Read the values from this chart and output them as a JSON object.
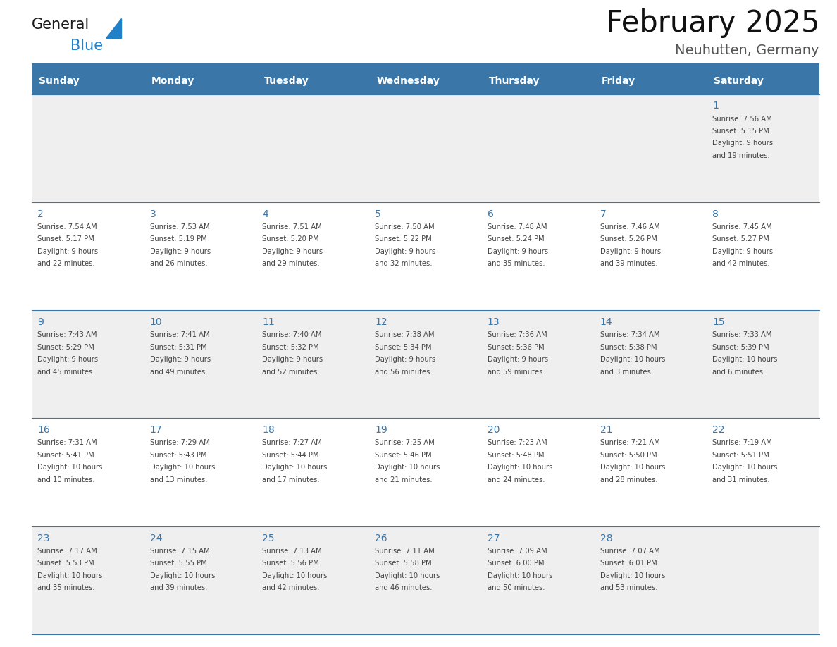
{
  "title": "February 2025",
  "subtitle": "Neuhutten, Germany",
  "header_bg": "#3a76a8",
  "header_text_color": "#ffffff",
  "days_of_week": [
    "Sunday",
    "Monday",
    "Tuesday",
    "Wednesday",
    "Thursday",
    "Friday",
    "Saturday"
  ],
  "cell_bg_odd": "#efefef",
  "cell_bg_even": "#ffffff",
  "separator_color": "#3a76a8",
  "day_num_color": "#3a76a8",
  "info_color": "#444444",
  "title_color": "#111111",
  "subtitle_color": "#555555",
  "calendar": [
    [
      null,
      null,
      null,
      null,
      null,
      null,
      {
        "day": 1,
        "sunrise": "7:56 AM",
        "sunset": "5:15 PM",
        "daylight": "9 hours and 19 minutes"
      }
    ],
    [
      {
        "day": 2,
        "sunrise": "7:54 AM",
        "sunset": "5:17 PM",
        "daylight": "9 hours and 22 minutes"
      },
      {
        "day": 3,
        "sunrise": "7:53 AM",
        "sunset": "5:19 PM",
        "daylight": "9 hours and 26 minutes"
      },
      {
        "day": 4,
        "sunrise": "7:51 AM",
        "sunset": "5:20 PM",
        "daylight": "9 hours and 29 minutes"
      },
      {
        "day": 5,
        "sunrise": "7:50 AM",
        "sunset": "5:22 PM",
        "daylight": "9 hours and 32 minutes"
      },
      {
        "day": 6,
        "sunrise": "7:48 AM",
        "sunset": "5:24 PM",
        "daylight": "9 hours and 35 minutes"
      },
      {
        "day": 7,
        "sunrise": "7:46 AM",
        "sunset": "5:26 PM",
        "daylight": "9 hours and 39 minutes"
      },
      {
        "day": 8,
        "sunrise": "7:45 AM",
        "sunset": "5:27 PM",
        "daylight": "9 hours and 42 minutes"
      }
    ],
    [
      {
        "day": 9,
        "sunrise": "7:43 AM",
        "sunset": "5:29 PM",
        "daylight": "9 hours and 45 minutes"
      },
      {
        "day": 10,
        "sunrise": "7:41 AM",
        "sunset": "5:31 PM",
        "daylight": "9 hours and 49 minutes"
      },
      {
        "day": 11,
        "sunrise": "7:40 AM",
        "sunset": "5:32 PM",
        "daylight": "9 hours and 52 minutes"
      },
      {
        "day": 12,
        "sunrise": "7:38 AM",
        "sunset": "5:34 PM",
        "daylight": "9 hours and 56 minutes"
      },
      {
        "day": 13,
        "sunrise": "7:36 AM",
        "sunset": "5:36 PM",
        "daylight": "9 hours and 59 minutes"
      },
      {
        "day": 14,
        "sunrise": "7:34 AM",
        "sunset": "5:38 PM",
        "daylight": "10 hours and 3 minutes"
      },
      {
        "day": 15,
        "sunrise": "7:33 AM",
        "sunset": "5:39 PM",
        "daylight": "10 hours and 6 minutes"
      }
    ],
    [
      {
        "day": 16,
        "sunrise": "7:31 AM",
        "sunset": "5:41 PM",
        "daylight": "10 hours and 10 minutes"
      },
      {
        "day": 17,
        "sunrise": "7:29 AM",
        "sunset": "5:43 PM",
        "daylight": "10 hours and 13 minutes"
      },
      {
        "day": 18,
        "sunrise": "7:27 AM",
        "sunset": "5:44 PM",
        "daylight": "10 hours and 17 minutes"
      },
      {
        "day": 19,
        "sunrise": "7:25 AM",
        "sunset": "5:46 PM",
        "daylight": "10 hours and 21 minutes"
      },
      {
        "day": 20,
        "sunrise": "7:23 AM",
        "sunset": "5:48 PM",
        "daylight": "10 hours and 24 minutes"
      },
      {
        "day": 21,
        "sunrise": "7:21 AM",
        "sunset": "5:50 PM",
        "daylight": "10 hours and 28 minutes"
      },
      {
        "day": 22,
        "sunrise": "7:19 AM",
        "sunset": "5:51 PM",
        "daylight": "10 hours and 31 minutes"
      }
    ],
    [
      {
        "day": 23,
        "sunrise": "7:17 AM",
        "sunset": "5:53 PM",
        "daylight": "10 hours and 35 minutes"
      },
      {
        "day": 24,
        "sunrise": "7:15 AM",
        "sunset": "5:55 PM",
        "daylight": "10 hours and 39 minutes"
      },
      {
        "day": 25,
        "sunrise": "7:13 AM",
        "sunset": "5:56 PM",
        "daylight": "10 hours and 42 minutes"
      },
      {
        "day": 26,
        "sunrise": "7:11 AM",
        "sunset": "5:58 PM",
        "daylight": "10 hours and 46 minutes"
      },
      {
        "day": 27,
        "sunrise": "7:09 AM",
        "sunset": "6:00 PM",
        "daylight": "10 hours and 50 minutes"
      },
      {
        "day": 28,
        "sunrise": "7:07 AM",
        "sunset": "6:01 PM",
        "daylight": "10 hours and 53 minutes"
      },
      null
    ]
  ],
  "logo_color_general": "#1a1a1a",
  "logo_color_blue": "#2080c8",
  "logo_triangle_color": "#2080c8",
  "fig_width": 11.88,
  "fig_height": 9.18,
  "dpi": 100
}
